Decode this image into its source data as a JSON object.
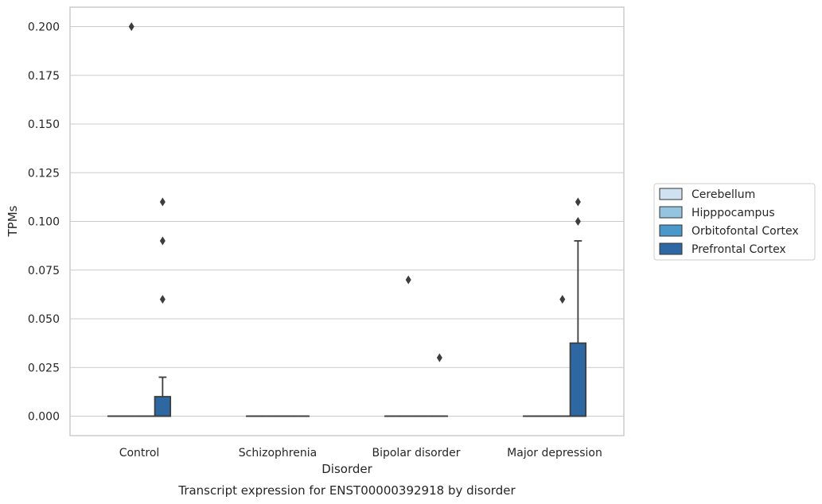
{
  "chart_data": {
    "type": "box",
    "title": "",
    "caption": "Transcript expression for ENST00000392918 by disorder",
    "xlabel": "Disorder",
    "ylabel": "TPMs",
    "ylim": [
      -0.01,
      0.21
    ],
    "yticks": [
      "0.000",
      "0.025",
      "0.050",
      "0.075",
      "0.100",
      "0.125",
      "0.150",
      "0.175",
      "0.200"
    ],
    "categories": [
      "Control",
      "Schizophrenia",
      "Bipolar disorder",
      "Major depression"
    ],
    "grid": "horizontal",
    "legend_position": "right",
    "series": [
      {
        "name": "Cerebellum",
        "color": "#d0e1f2",
        "boxes": [
          {
            "q1": 0,
            "median": 0,
            "q3": 0,
            "whisker_low": 0,
            "whisker_high": 0,
            "outliers": []
          },
          {
            "q1": 0,
            "median": 0,
            "q3": 0,
            "whisker_low": 0,
            "whisker_high": 0,
            "outliers": []
          },
          {
            "q1": 0,
            "median": 0,
            "q3": 0,
            "whisker_low": 0,
            "whisker_high": 0,
            "outliers": []
          },
          {
            "q1": 0,
            "median": 0,
            "q3": 0,
            "whisker_low": 0,
            "whisker_high": 0,
            "outliers": []
          }
        ]
      },
      {
        "name": "Hipppocampus",
        "color": "#94c4df",
        "boxes": [
          {
            "q1": 0,
            "median": 0,
            "q3": 0,
            "whisker_low": 0,
            "whisker_high": 0,
            "outliers": [
              0.2
            ]
          },
          {
            "q1": 0,
            "median": 0,
            "q3": 0,
            "whisker_low": 0,
            "whisker_high": 0,
            "outliers": []
          },
          {
            "q1": 0,
            "median": 0,
            "q3": 0,
            "whisker_low": 0,
            "whisker_high": 0,
            "outliers": [
              0.07
            ]
          },
          {
            "q1": 0,
            "median": 0,
            "q3": 0,
            "whisker_low": 0,
            "whisker_high": 0,
            "outliers": []
          }
        ]
      },
      {
        "name": "Orbitofontal Cortex",
        "color": "#4a98c9",
        "boxes": [
          {
            "q1": 0,
            "median": 0,
            "q3": 0,
            "whisker_low": 0,
            "whisker_high": 0,
            "outliers": []
          },
          {
            "q1": 0,
            "median": 0,
            "q3": 0,
            "whisker_low": 0,
            "whisker_high": 0,
            "outliers": []
          },
          {
            "q1": 0,
            "median": 0,
            "q3": 0,
            "whisker_low": 0,
            "whisker_high": 0,
            "outliers": []
          },
          {
            "q1": 0,
            "median": 0,
            "q3": 0,
            "whisker_low": 0,
            "whisker_high": 0,
            "outliers": [
              0.06
            ]
          }
        ]
      },
      {
        "name": "Prefrontal Cortex",
        "color": "#2d68a3",
        "boxes": [
          {
            "q1": 0,
            "median": 0,
            "q3": 0.01,
            "whisker_low": 0,
            "whisker_high": 0.02,
            "outliers": [
              0.11,
              0.09,
              0.06
            ]
          },
          {
            "q1": 0,
            "median": 0,
            "q3": 0,
            "whisker_low": 0,
            "whisker_high": 0,
            "outliers": []
          },
          {
            "q1": 0,
            "median": 0,
            "q3": 0,
            "whisker_low": 0,
            "whisker_high": 0,
            "outliers": [
              0.03
            ]
          },
          {
            "q1": 0,
            "median": 0,
            "q3": 0.0375,
            "whisker_low": 0,
            "whisker_high": 0.09,
            "outliers": [
              0.11,
              0.1
            ]
          }
        ]
      }
    ]
  }
}
